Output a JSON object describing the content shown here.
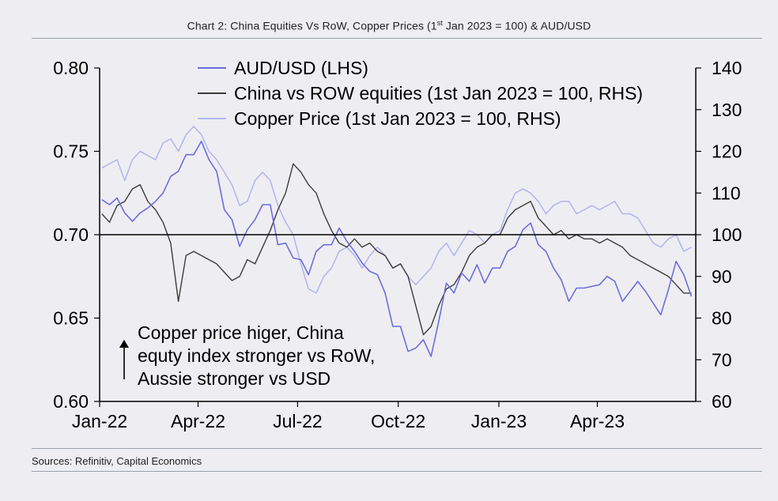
{
  "title": {
    "pre": "Chart 2: China Equities Vs RoW, Copper Prices (1",
    "sup": "st",
    "post": " Jan 2023 = 100) & AUD/USD"
  },
  "source": "Sources: Refinitiv, Capital Economics",
  "colors": {
    "aud": "#6b6de0",
    "china": "#3c3c3c",
    "copper": "#b4b6f2",
    "axis": "#000000",
    "background": "#eeeef2"
  },
  "chart_data": {
    "type": "line",
    "x_axis": {
      "type": "date",
      "min": "2022-01-01",
      "max": "2023-06-30",
      "ticks": [
        "2022-01-01",
        "2022-04-01",
        "2022-07-01",
        "2022-10-01",
        "2023-01-01",
        "2023-04-01"
      ],
      "tick_labels": [
        "Jan-22",
        "Apr-22",
        "Jul-22",
        "Oct-22",
        "Jan-23",
        "Apr-23"
      ]
    },
    "y_left": {
      "range": [
        0.6,
        0.8
      ],
      "ticks": [
        "0.60",
        "0.65",
        "0.70",
        "0.75",
        "0.80"
      ]
    },
    "y_right": {
      "range": [
        60,
        140
      ],
      "ticks": [
        "60",
        "70",
        "80",
        "90",
        "100",
        "110",
        "120",
        "130",
        "140"
      ]
    },
    "reference_line": {
      "axis": "right",
      "value": 100
    },
    "legend_position": "top",
    "grid": false,
    "annotation": {
      "lines": [
        "Copper price higer, China",
        "equty index stronger vs RoW,",
        "Aussie stronger vs USD"
      ],
      "arrow": "up"
    },
    "series": [
      {
        "name": "AUD/USD (LHS)",
        "axis": "left",
        "points": [
          [
            "2022-01-03",
            0.721
          ],
          [
            "2022-01-10",
            0.718
          ],
          [
            "2022-01-17",
            0.722
          ],
          [
            "2022-01-24",
            0.713
          ],
          [
            "2022-01-31",
            0.708
          ],
          [
            "2022-02-07",
            0.713
          ],
          [
            "2022-02-14",
            0.716
          ],
          [
            "2022-02-21",
            0.72
          ],
          [
            "2022-02-28",
            0.725
          ],
          [
            "2022-03-07",
            0.735
          ],
          [
            "2022-03-14",
            0.738
          ],
          [
            "2022-03-21",
            0.748
          ],
          [
            "2022-03-28",
            0.748
          ],
          [
            "2022-04-04",
            0.756
          ],
          [
            "2022-04-11",
            0.745
          ],
          [
            "2022-04-18",
            0.738
          ],
          [
            "2022-04-25",
            0.715
          ],
          [
            "2022-05-02",
            0.709
          ],
          [
            "2022-05-09",
            0.693
          ],
          [
            "2022-05-16",
            0.703
          ],
          [
            "2022-05-23",
            0.709
          ],
          [
            "2022-05-30",
            0.718
          ],
          [
            "2022-06-06",
            0.718
          ],
          [
            "2022-06-13",
            0.694
          ],
          [
            "2022-06-20",
            0.695
          ],
          [
            "2022-06-27",
            0.686
          ],
          [
            "2022-07-04",
            0.685
          ],
          [
            "2022-07-11",
            0.676
          ],
          [
            "2022-07-18",
            0.69
          ],
          [
            "2022-07-25",
            0.694
          ],
          [
            "2022-08-01",
            0.694
          ],
          [
            "2022-08-08",
            0.704
          ],
          [
            "2022-08-15",
            0.696
          ],
          [
            "2022-08-22",
            0.69
          ],
          [
            "2022-08-29",
            0.683
          ],
          [
            "2022-09-05",
            0.678
          ],
          [
            "2022-09-12",
            0.676
          ],
          [
            "2022-09-19",
            0.665
          ],
          [
            "2022-09-26",
            0.645
          ],
          [
            "2022-10-03",
            0.645
          ],
          [
            "2022-10-10",
            0.63
          ],
          [
            "2022-10-17",
            0.632
          ],
          [
            "2022-10-24",
            0.637
          ],
          [
            "2022-10-31",
            0.627
          ],
          [
            "2022-11-07",
            0.648
          ],
          [
            "2022-11-14",
            0.671
          ],
          [
            "2022-11-21",
            0.665
          ],
          [
            "2022-11-28",
            0.677
          ],
          [
            "2022-12-05",
            0.672
          ],
          [
            "2022-12-12",
            0.682
          ],
          [
            "2022-12-19",
            0.671
          ],
          [
            "2022-12-26",
            0.68
          ],
          [
            "2023-01-02",
            0.68
          ],
          [
            "2023-01-09",
            0.69
          ],
          [
            "2023-01-16",
            0.693
          ],
          [
            "2023-01-23",
            0.703
          ],
          [
            "2023-01-30",
            0.707
          ],
          [
            "2023-02-06",
            0.694
          ],
          [
            "2023-02-13",
            0.69
          ],
          [
            "2023-02-20",
            0.68
          ],
          [
            "2023-02-27",
            0.673
          ],
          [
            "2023-03-06",
            0.66
          ],
          [
            "2023-03-13",
            0.668
          ],
          [
            "2023-03-20",
            0.668
          ],
          [
            "2023-03-27",
            0.669
          ],
          [
            "2023-04-03",
            0.67
          ],
          [
            "2023-04-10",
            0.675
          ],
          [
            "2023-04-17",
            0.672
          ],
          [
            "2023-04-24",
            0.66
          ],
          [
            "2023-05-01",
            0.666
          ],
          [
            "2023-05-08",
            0.672
          ],
          [
            "2023-05-15",
            0.666
          ],
          [
            "2023-05-22",
            0.659
          ],
          [
            "2023-05-29",
            0.652
          ],
          [
            "2023-06-05",
            0.667
          ],
          [
            "2023-06-12",
            0.684
          ],
          [
            "2023-06-19",
            0.676
          ],
          [
            "2023-06-26",
            0.663
          ]
        ]
      },
      {
        "name": "China vs ROW equities (1st Jan 2023 = 100, RHS)",
        "axis": "right",
        "points": [
          [
            "2022-01-03",
            105
          ],
          [
            "2022-01-10",
            103
          ],
          [
            "2022-01-17",
            107
          ],
          [
            "2022-01-24",
            108
          ],
          [
            "2022-01-31",
            111
          ],
          [
            "2022-02-07",
            112
          ],
          [
            "2022-02-14",
            108
          ],
          [
            "2022-02-21",
            106
          ],
          [
            "2022-02-28",
            103
          ],
          [
            "2022-03-07",
            98
          ],
          [
            "2022-03-14",
            84
          ],
          [
            "2022-03-21",
            95
          ],
          [
            "2022-03-28",
            96
          ],
          [
            "2022-04-04",
            95
          ],
          [
            "2022-04-11",
            94
          ],
          [
            "2022-04-18",
            93
          ],
          [
            "2022-04-25",
            91
          ],
          [
            "2022-05-02",
            89
          ],
          [
            "2022-05-09",
            90
          ],
          [
            "2022-05-16",
            94
          ],
          [
            "2022-05-23",
            93
          ],
          [
            "2022-05-30",
            97
          ],
          [
            "2022-06-06",
            101
          ],
          [
            "2022-06-13",
            106
          ],
          [
            "2022-06-20",
            110
          ],
          [
            "2022-06-27",
            117
          ],
          [
            "2022-07-04",
            115
          ],
          [
            "2022-07-11",
            112
          ],
          [
            "2022-07-18",
            110
          ],
          [
            "2022-07-25",
            105
          ],
          [
            "2022-08-01",
            101
          ],
          [
            "2022-08-08",
            98
          ],
          [
            "2022-08-15",
            97
          ],
          [
            "2022-08-22",
            99
          ],
          [
            "2022-08-29",
            97
          ],
          [
            "2022-09-05",
            98
          ],
          [
            "2022-09-12",
            96
          ],
          [
            "2022-09-19",
            95
          ],
          [
            "2022-09-26",
            92
          ],
          [
            "2022-10-03",
            93
          ],
          [
            "2022-10-10",
            90
          ],
          [
            "2022-10-17",
            83
          ],
          [
            "2022-10-24",
            76
          ],
          [
            "2022-10-31",
            78
          ],
          [
            "2022-11-07",
            83
          ],
          [
            "2022-11-14",
            87
          ],
          [
            "2022-11-21",
            88
          ],
          [
            "2022-11-28",
            91
          ],
          [
            "2022-12-05",
            95
          ],
          [
            "2022-12-12",
            97
          ],
          [
            "2022-12-19",
            98
          ],
          [
            "2022-12-26",
            100
          ],
          [
            "2023-01-02",
            100
          ],
          [
            "2023-01-09",
            104
          ],
          [
            "2023-01-16",
            106
          ],
          [
            "2023-01-23",
            107
          ],
          [
            "2023-01-30",
            108
          ],
          [
            "2023-02-06",
            104
          ],
          [
            "2023-02-13",
            102
          ],
          [
            "2023-02-20",
            100
          ],
          [
            "2023-02-27",
            101
          ],
          [
            "2023-03-06",
            99
          ],
          [
            "2023-03-13",
            100
          ],
          [
            "2023-03-20",
            99
          ],
          [
            "2023-03-27",
            99
          ],
          [
            "2023-04-03",
            98
          ],
          [
            "2023-04-10",
            99
          ],
          [
            "2023-04-17",
            98
          ],
          [
            "2023-04-24",
            97
          ],
          [
            "2023-05-01",
            95
          ],
          [
            "2023-05-08",
            94
          ],
          [
            "2023-05-15",
            93
          ],
          [
            "2023-05-22",
            92
          ],
          [
            "2023-05-29",
            91
          ],
          [
            "2023-06-05",
            90
          ],
          [
            "2023-06-12",
            88
          ],
          [
            "2023-06-19",
            86
          ],
          [
            "2023-06-26",
            86
          ]
        ]
      },
      {
        "name": "Copper Price (1st Jan 2023 = 100, RHS)",
        "axis": "right",
        "points": [
          [
            "2022-01-03",
            116
          ],
          [
            "2022-01-10",
            117
          ],
          [
            "2022-01-17",
            118
          ],
          [
            "2022-01-24",
            113
          ],
          [
            "2022-01-31",
            118
          ],
          [
            "2022-02-07",
            120
          ],
          [
            "2022-02-14",
            119
          ],
          [
            "2022-02-21",
            118
          ],
          [
            "2022-02-28",
            122
          ],
          [
            "2022-03-07",
            123
          ],
          [
            "2022-03-14",
            120
          ],
          [
            "2022-03-21",
            124
          ],
          [
            "2022-03-28",
            126
          ],
          [
            "2022-04-04",
            124
          ],
          [
            "2022-04-11",
            120
          ],
          [
            "2022-04-18",
            118
          ],
          [
            "2022-04-25",
            115
          ],
          [
            "2022-05-02",
            112
          ],
          [
            "2022-05-09",
            107
          ],
          [
            "2022-05-16",
            108
          ],
          [
            "2022-05-23",
            113
          ],
          [
            "2022-05-30",
            115
          ],
          [
            "2022-06-06",
            113
          ],
          [
            "2022-06-13",
            107
          ],
          [
            "2022-06-20",
            103
          ],
          [
            "2022-06-27",
            100
          ],
          [
            "2022-07-04",
            93
          ],
          [
            "2022-07-11",
            87
          ],
          [
            "2022-07-18",
            86
          ],
          [
            "2022-07-25",
            90
          ],
          [
            "2022-08-01",
            92
          ],
          [
            "2022-08-08",
            96
          ],
          [
            "2022-08-15",
            97
          ],
          [
            "2022-08-22",
            95
          ],
          [
            "2022-08-29",
            92
          ],
          [
            "2022-09-05",
            95
          ],
          [
            "2022-09-12",
            97
          ],
          [
            "2022-09-19",
            95
          ],
          [
            "2022-09-26",
            92
          ],
          [
            "2022-10-03",
            93
          ],
          [
            "2022-10-10",
            90
          ],
          [
            "2022-10-17",
            88
          ],
          [
            "2022-10-24",
            90
          ],
          [
            "2022-10-31",
            92
          ],
          [
            "2022-11-07",
            96
          ],
          [
            "2022-11-14",
            98
          ],
          [
            "2022-11-21",
            95
          ],
          [
            "2022-11-28",
            98
          ],
          [
            "2022-12-05",
            101
          ],
          [
            "2022-12-12",
            100
          ],
          [
            "2022-12-19",
            98
          ],
          [
            "2022-12-26",
            100
          ],
          [
            "2023-01-02",
            101
          ],
          [
            "2023-01-09",
            106
          ],
          [
            "2023-01-16",
            110
          ],
          [
            "2023-01-23",
            111
          ],
          [
            "2023-01-30",
            110
          ],
          [
            "2023-02-06",
            108
          ],
          [
            "2023-02-13",
            105
          ],
          [
            "2023-02-20",
            107
          ],
          [
            "2023-02-27",
            108
          ],
          [
            "2023-03-06",
            108
          ],
          [
            "2023-03-13",
            105
          ],
          [
            "2023-03-20",
            106
          ],
          [
            "2023-03-27",
            107
          ],
          [
            "2023-04-03",
            106
          ],
          [
            "2023-04-10",
            107
          ],
          [
            "2023-04-17",
            108
          ],
          [
            "2023-04-24",
            105
          ],
          [
            "2023-05-01",
            105
          ],
          [
            "2023-05-08",
            104
          ],
          [
            "2023-05-15",
            101
          ],
          [
            "2023-05-22",
            98
          ],
          [
            "2023-05-29",
            97
          ],
          [
            "2023-06-05",
            99
          ],
          [
            "2023-06-12",
            100
          ],
          [
            "2023-06-19",
            96
          ],
          [
            "2023-06-26",
            97
          ]
        ]
      }
    ]
  }
}
